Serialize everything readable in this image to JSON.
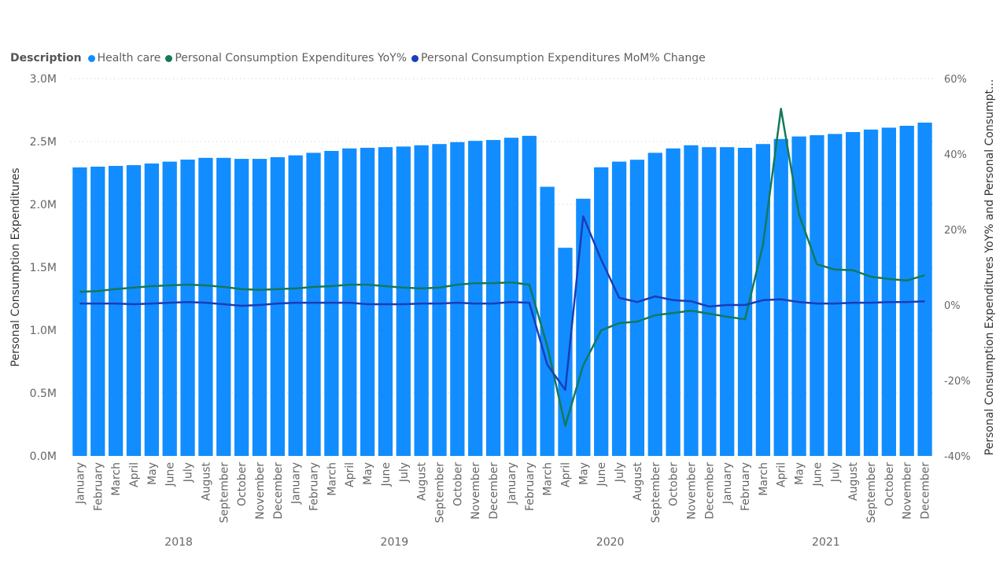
{
  "chart_data": {
    "type": "bar+line",
    "legend_title": "Description",
    "legend_placement": "top-left",
    "categories_month": [
      "January",
      "February",
      "March",
      "April",
      "May",
      "June",
      "July",
      "August",
      "September",
      "October",
      "November",
      "December"
    ],
    "years": [
      "2018",
      "2019",
      "2020",
      "2021"
    ],
    "ylabel": "Personal Consumption Expenditures",
    "y2label": "Personal Consumption Expenditures YoY% and Personal Consumpt...",
    "ylim": [
      0,
      3000000
    ],
    "yticks": [
      "0.0M",
      "0.5M",
      "1.0M",
      "1.5M",
      "2.0M",
      "2.5M",
      "3.0M"
    ],
    "y2lim": [
      -40,
      60
    ],
    "y2ticks": [
      "-40%",
      "-20%",
      "0%",
      "20%",
      "40%",
      "60%"
    ],
    "grid": true,
    "series": [
      {
        "name": "Health care",
        "type": "bar",
        "axis": "left",
        "color": "#118DFF",
        "values": [
          2294000,
          2300000,
          2306000,
          2312000,
          2325000,
          2340000,
          2356000,
          2370000,
          2370000,
          2362000,
          2362000,
          2375000,
          2390000,
          2410000,
          2425000,
          2445000,
          2450000,
          2455000,
          2460000,
          2470000,
          2480000,
          2495000,
          2505000,
          2512000,
          2530000,
          2545000,
          2140000,
          1655000,
          2045000,
          2295000,
          2340000,
          2355000,
          2410000,
          2445000,
          2470000,
          2455000,
          2455000,
          2450000,
          2480000,
          2520000,
          2540000,
          2550000,
          2560000,
          2575000,
          2595000,
          2610000,
          2625000,
          2650000
        ]
      },
      {
        "name": "Personal Consumption Expenditures YoY%",
        "type": "line",
        "axis": "right",
        "color": "#13795B",
        "values": [
          3.5,
          3.7,
          4.2,
          4.6,
          5.0,
          5.2,
          5.4,
          5.2,
          4.8,
          4.2,
          4.0,
          4.2,
          4.4,
          4.8,
          5.0,
          5.4,
          5.4,
          5.0,
          4.6,
          4.4,
          4.6,
          5.4,
          5.8,
          5.8,
          6.0,
          5.4,
          -10.8,
          -32.0,
          -16.0,
          -6.7,
          -4.8,
          -4.4,
          -2.7,
          -2.1,
          -1.5,
          -2.3,
          -3.1,
          -3.8,
          16.0,
          52.0,
          24.0,
          10.8,
          9.4,
          9.2,
          7.5,
          6.9,
          6.5,
          7.9
        ]
      },
      {
        "name": "Personal Consumption Expenditures MoM% Change",
        "type": "line",
        "axis": "right",
        "color": "#1A3DB8",
        "values": [
          0.4,
          0.4,
          0.4,
          0.2,
          0.4,
          0.6,
          0.8,
          0.6,
          0.2,
          -0.2,
          0.0,
          0.4,
          0.6,
          0.6,
          0.6,
          0.6,
          0.2,
          0.2,
          0.2,
          0.4,
          0.4,
          0.6,
          0.4,
          0.4,
          0.8,
          0.6,
          -15.8,
          -22.5,
          23.5,
          12.0,
          1.9,
          0.8,
          2.3,
          1.3,
          1.0,
          -0.4,
          0.0,
          0.0,
          1.3,
          1.5,
          0.8,
          0.4,
          0.4,
          0.6,
          0.6,
          0.8,
          0.8,
          1.0
        ]
      }
    ]
  }
}
